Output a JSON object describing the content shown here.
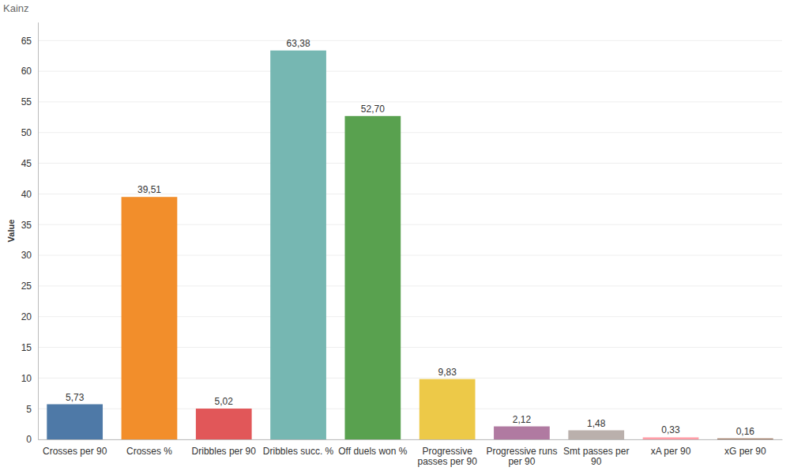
{
  "chart_data": {
    "type": "bar",
    "title": "Kainz",
    "y_label": "Value",
    "categories": [
      "Crosses per 90",
      "Crosses %",
      "Dribbles per 90",
      "Dribbles succ. %",
      "Off duels won %",
      "Progressive passes per 90",
      "Progressive runs per 90",
      "Smt passes per 90",
      "xA per 90",
      "xG per 90"
    ],
    "values": [
      5.73,
      39.51,
      5.02,
      63.38,
      52.7,
      9.83,
      2.12,
      1.48,
      0.33,
      0.16
    ],
    "value_labels": [
      "5,73",
      "39,51",
      "5,02",
      "63,38",
      "52,70",
      "9,83",
      "2,12",
      "1,48",
      "0,33",
      "0,16"
    ],
    "colors": [
      "#4e79a7",
      "#f28e2b",
      "#e15759",
      "#76b7b2",
      "#59a14f",
      "#edc948",
      "#b07aa1",
      "#bab0ac",
      "#ff9da7",
      "#9c755f"
    ],
    "ylim": [
      0,
      68
    ],
    "yticks": [
      0,
      5,
      10,
      15,
      20,
      25,
      30,
      35,
      40,
      45,
      50,
      55,
      60,
      65
    ],
    "grid": true,
    "data_labels": true
  }
}
